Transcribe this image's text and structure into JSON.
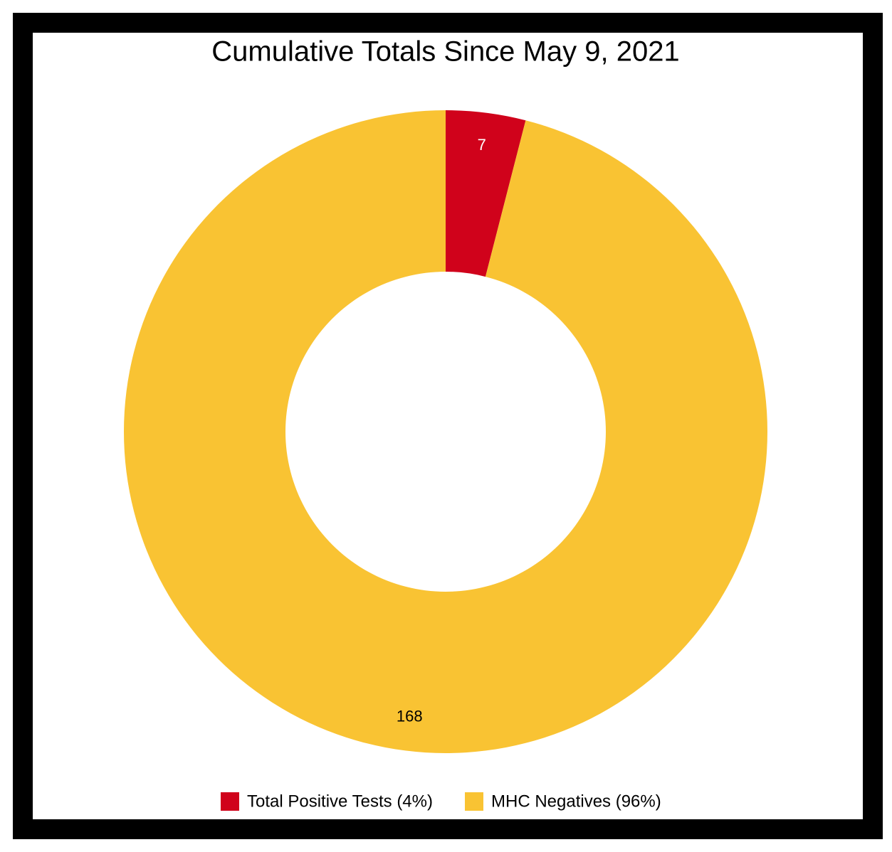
{
  "chart_data": {
    "type": "donut",
    "title": "Cumulative Totals Since May 9, 2021",
    "categories": [
      "Total Positive Tests (4%)",
      "MHC Negatives (96%)"
    ],
    "values": [
      7,
      168
    ],
    "colors": [
      "#d0021b",
      "#f9c333"
    ],
    "value_label_colors": [
      "#ffffff",
      "#000000"
    ]
  }
}
